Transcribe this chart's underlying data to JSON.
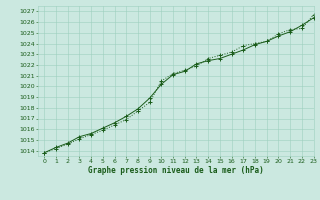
{
  "title": "Graphe pression niveau de la mer (hPa)",
  "background_color": "#cbe8e0",
  "grid_color": "#9ecfbe",
  "line_color": "#1a5c1a",
  "text_color": "#1a5c1a",
  "xlim": [
    -0.5,
    23
  ],
  "ylim": [
    1013.5,
    1027.5
  ],
  "yticks": [
    1014,
    1015,
    1016,
    1017,
    1018,
    1019,
    1020,
    1021,
    1022,
    1023,
    1024,
    1025,
    1026,
    1027
  ],
  "xticks": [
    0,
    1,
    2,
    3,
    4,
    5,
    6,
    7,
    8,
    9,
    10,
    11,
    12,
    13,
    14,
    15,
    16,
    17,
    18,
    19,
    20,
    21,
    22,
    23
  ],
  "series1_x": [
    0,
    1,
    2,
    3,
    4,
    5,
    6,
    7,
    8,
    9,
    10,
    11,
    12,
    13,
    14,
    15,
    16,
    17,
    18,
    19,
    20,
    21,
    22,
    23
  ],
  "series1_y": [
    1013.8,
    1014.3,
    1014.7,
    1015.3,
    1015.6,
    1016.1,
    1016.6,
    1017.2,
    1017.9,
    1018.9,
    1020.2,
    1021.1,
    1021.4,
    1022.1,
    1022.4,
    1022.6,
    1023.0,
    1023.4,
    1023.9,
    1024.2,
    1024.7,
    1025.1,
    1025.7,
    1026.4
  ],
  "series2_x": [
    0,
    1,
    2,
    3,
    4,
    5,
    6,
    7,
    8,
    9,
    10,
    11,
    12,
    13,
    14,
    15,
    16,
    17,
    18,
    19,
    20,
    21,
    22,
    23
  ],
  "series2_y": [
    1013.8,
    1014.2,
    1014.6,
    1015.1,
    1015.5,
    1015.9,
    1016.4,
    1016.9,
    1017.7,
    1018.5,
    1020.5,
    1021.2,
    1021.5,
    1021.9,
    1022.6,
    1022.9,
    1023.2,
    1023.8,
    1024.0,
    1024.2,
    1024.9,
    1025.3,
    1025.4,
    1026.7
  ],
  "figwidth": 3.2,
  "figheight": 2.0,
  "dpi": 100
}
